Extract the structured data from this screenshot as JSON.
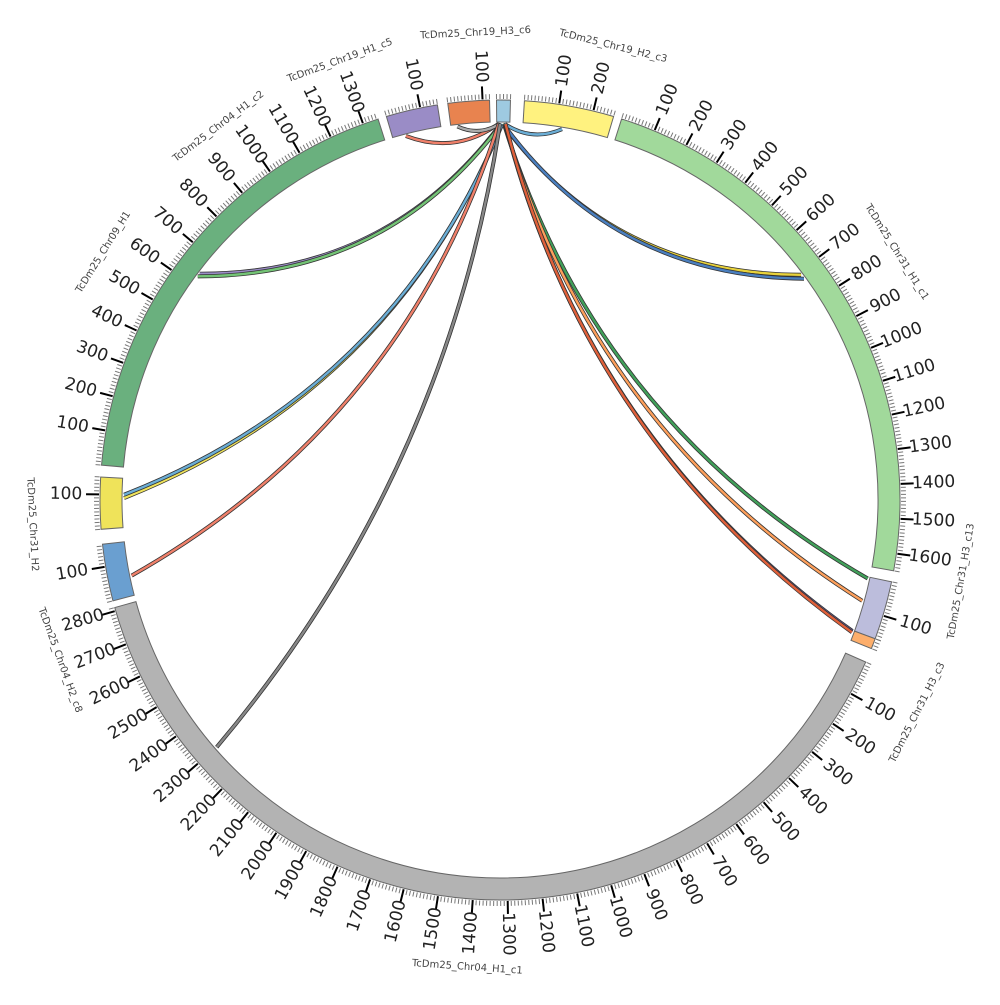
{
  "chart_data": {
    "type": "chord",
    "title": "",
    "segments": [
      {
        "name": "TcDm25_Chr31_H1_c1",
        "length": 1650,
        "color": "#a1d99b"
      },
      {
        "name": "TcDm25_Chr31_H3_c13",
        "length": 170,
        "color": "#bcbddc"
      },
      {
        "name": "TcDm25_Chr31_H3_c3",
        "length": 30,
        "color": "#fdae6b"
      },
      {
        "name": "TcDm25_Chr04_H1_c1",
        "length": 2810,
        "color": "#b3b3b3"
      },
      {
        "name": "TcDm25_Chr04_H2_c8",
        "length": 165,
        "color": "#6a9fd0"
      },
      {
        "name": "TcDm25_Chr31_H2",
        "length": 150,
        "color": "#efe35a"
      },
      {
        "name": "TcDm25_Chr09_H1",
        "length": 1345,
        "color": "#6ab07e"
      },
      {
        "name": "TcDm25_Chr04_H1_c2",
        "length": 150,
        "color": "#9a8cc6"
      },
      {
        "name": "TcDm25_Chr19_H1_c5",
        "length": 120,
        "color": "#e8834f"
      },
      {
        "name": "TcDm25_Chr19_H3_c6",
        "length": 40,
        "color": "#9ecae1"
      },
      {
        "name": "TcDm25_Chr19_H2_c3",
        "length": 260,
        "color": "#fff27f"
      }
    ],
    "links": [
      {
        "from": 9,
        "from_pos": 25,
        "to": 10,
        "to_pos": 120,
        "color": "#6baed6"
      },
      {
        "from": 9,
        "from_pos": 5,
        "to": 7,
        "to_pos": 40,
        "color": "#f0806a"
      },
      {
        "from": 9,
        "from_pos": 8,
        "to": 8,
        "to_pos": 20,
        "color": "#aaaaaa"
      },
      {
        "from": 9,
        "from_pos": 12,
        "to": 6,
        "to_pos": 640,
        "color": "#9a8cc6"
      },
      {
        "from": 9,
        "from_pos": 14,
        "to": 6,
        "to_pos": 630,
        "color": "#74c476"
      },
      {
        "from": 9,
        "from_pos": 18,
        "to": 0,
        "to_pos": 710,
        "color": "#e8d23a"
      },
      {
        "from": 9,
        "from_pos": 20,
        "to": 0,
        "to_pos": 725,
        "color": "#4a7fbf"
      },
      {
        "from": 9,
        "from_pos": 16,
        "to": 5,
        "to_pos": 90,
        "color": "#efe35a"
      },
      {
        "from": 9,
        "from_pos": 17,
        "to": 5,
        "to_pos": 100,
        "color": "#6baed6"
      },
      {
        "from": 9,
        "from_pos": 6,
        "to": 4,
        "to_pos": 60,
        "color": "#f0806a"
      },
      {
        "from": 9,
        "from_pos": 10,
        "to": 3,
        "to_pos": 2300,
        "color": "#888888"
      },
      {
        "from": 9,
        "from_pos": 22,
        "to": 1,
        "to_pos": 5,
        "color": "#41a05a"
      },
      {
        "from": 9,
        "from_pos": 24,
        "to": 1,
        "to_pos": 75,
        "color": "#fd9f5b"
      },
      {
        "from": 9,
        "from_pos": 26,
        "to": 2,
        "to_pos": 2,
        "color": "#7a68b8"
      },
      {
        "from": 9,
        "from_pos": 27,
        "to": 2,
        "to_pos": 6,
        "color": "#e0603a"
      }
    ]
  }
}
